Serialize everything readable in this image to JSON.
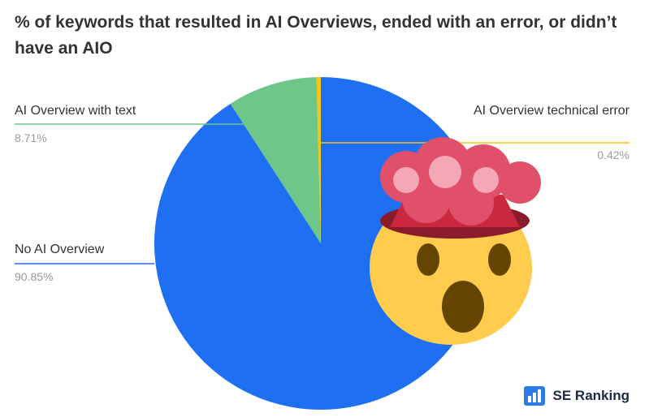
{
  "chart_data": {
    "type": "pie",
    "title": "% of keywords that resulted in AI Overviews, ended with an error, or didn’t have an AIO",
    "categories": [
      "No AI Overview",
      "AI Overview with text",
      "AI Overview technical error"
    ],
    "values": [
      90.85,
      8.71,
      0.42
    ],
    "value_labels": [
      "90.85%",
      "8.71%",
      "0.42%"
    ],
    "colors": [
      "#1f6ff3",
      "#6cc788",
      "#f5c518"
    ],
    "logo_text": "SE Ranking"
  }
}
